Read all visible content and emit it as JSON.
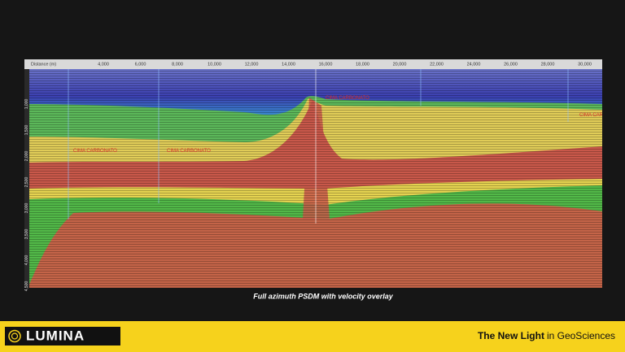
{
  "slide": {
    "section": {
      "axis_label": "Distance (m)",
      "x_ticks": [
        "4,000",
        "6,000",
        "8,000",
        "10,000",
        "12,000",
        "14,000",
        "16,000",
        "18,000",
        "20,000",
        "22,000",
        "24,000",
        "26,000",
        "28,000",
        "30,000"
      ],
      "depth_ticks": [
        "1,000",
        "1,500",
        "2,000",
        "2,500",
        "3,000",
        "3,500",
        "4,000",
        "4,500"
      ],
      "horizons": [
        "CIMA CARBONATO",
        "CIMA CARBONATO",
        "CIMA CARBONATO",
        "CIMA CARBONATO"
      ]
    },
    "caption": "Full azimuth PSDM with velocity overlay",
    "footer": {
      "logo": "LUMINA",
      "tagline_bold": "The New Light",
      "tagline_rest": "in GeoSciences"
    }
  }
}
